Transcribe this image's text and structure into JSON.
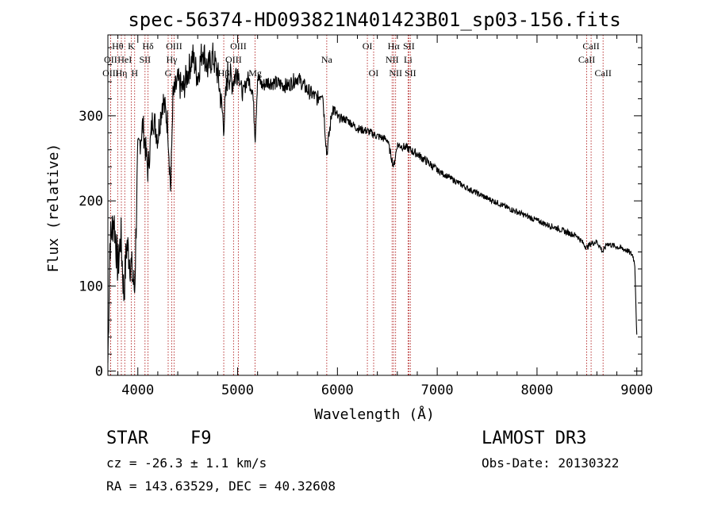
{
  "chart_data": {
    "type": "line",
    "title": "spec-56374-HD093821N401423B01_sp03-156.fits",
    "xlabel": "Wavelength (Å)",
    "ylabel": "Flux (relative)",
    "xlim": [
      3700,
      9050
    ],
    "ylim": [
      -5,
      395
    ],
    "x_ticks": [
      4000,
      5000,
      6000,
      7000,
      8000,
      9000
    ],
    "y_ticks": [
      0,
      100,
      200,
      300
    ],
    "series": [
      {
        "name": "spectrum",
        "anchors": [
          [
            3700,
            10
          ],
          [
            3720,
            150
          ],
          [
            3760,
            180
          ],
          [
            3800,
            120
          ],
          [
            3830,
            160
          ],
          [
            3860,
            90
          ],
          [
            3890,
            150
          ],
          [
            3930,
            125
          ],
          [
            3968,
            95
          ],
          [
            4000,
            255
          ],
          [
            4050,
            290
          ],
          [
            4101,
            235
          ],
          [
            4150,
            300
          ],
          [
            4200,
            275
          ],
          [
            4250,
            320
          ],
          [
            4300,
            290
          ],
          [
            4330,
            210
          ],
          [
            4350,
            320
          ],
          [
            4400,
            340
          ],
          [
            4450,
            330
          ],
          [
            4500,
            350
          ],
          [
            4550,
            370
          ],
          [
            4600,
            345
          ],
          [
            4650,
            380
          ],
          [
            4700,
            355
          ],
          [
            4750,
            370
          ],
          [
            4800,
            350
          ],
          [
            4861,
            290
          ],
          [
            4900,
            350
          ],
          [
            4950,
            340
          ],
          [
            5000,
            355
          ],
          [
            5050,
            325
          ],
          [
            5100,
            345
          ],
          [
            5150,
            330
          ],
          [
            5176,
            275
          ],
          [
            5200,
            345
          ],
          [
            5250,
            335
          ],
          [
            5300,
            340
          ],
          [
            5400,
            338
          ],
          [
            5500,
            335
          ],
          [
            5600,
            345
          ],
          [
            5700,
            330
          ],
          [
            5800,
            320
          ],
          [
            5850,
            330
          ],
          [
            5893,
            255
          ],
          [
            5950,
            310
          ],
          [
            6000,
            298
          ],
          [
            6100,
            295
          ],
          [
            6200,
            285
          ],
          [
            6300,
            282
          ],
          [
            6400,
            276
          ],
          [
            6500,
            272
          ],
          [
            6563,
            240
          ],
          [
            6600,
            266
          ],
          [
            6700,
            262
          ],
          [
            6800,
            255
          ],
          [
            6900,
            246
          ],
          [
            7000,
            236
          ],
          [
            7100,
            229
          ],
          [
            7200,
            222
          ],
          [
            7300,
            215
          ],
          [
            7400,
            209
          ],
          [
            7500,
            203
          ],
          [
            7600,
            198
          ],
          [
            7700,
            192
          ],
          [
            7800,
            187
          ],
          [
            7900,
            182
          ],
          [
            8000,
            177
          ],
          [
            8100,
            172
          ],
          [
            8200,
            168
          ],
          [
            8300,
            163
          ],
          [
            8400,
            159
          ],
          [
            8498,
            145
          ],
          [
            8542,
            150
          ],
          [
            8600,
            152
          ],
          [
            8662,
            140
          ],
          [
            8700,
            150
          ],
          [
            8800,
            146
          ],
          [
            8900,
            142
          ],
          [
            8960,
            136
          ],
          [
            8980,
            125
          ],
          [
            9000,
            40
          ]
        ]
      }
    ],
    "lines": [
      {
        "wavelength": 3727,
        "label": "OII",
        "row": 2
      },
      {
        "wavelength": 3727,
        "label": "OIII",
        "row": 3
      },
      {
        "wavelength": 3798,
        "label": "Hθ",
        "row": 1
      },
      {
        "wavelength": 3835,
        "label": "Hη",
        "row": 3
      },
      {
        "wavelength": 3869,
        "label": "HeI",
        "row": 2
      },
      {
        "wavelength": 3934,
        "label": "K",
        "row": 1
      },
      {
        "wavelength": 3968,
        "label": "H",
        "row": 3
      },
      {
        "wavelength": 4072,
        "label": "SII",
        "row": 2
      },
      {
        "wavelength": 4102,
        "label": "Hδ",
        "row": 1
      },
      {
        "wavelength": 4304,
        "label": "G",
        "row": 3
      },
      {
        "wavelength": 4340,
        "label": "Hγ",
        "row": 2
      },
      {
        "wavelength": 4363,
        "label": "OIII",
        "row": 1
      },
      {
        "wavelength": 4861,
        "label": "Hβ",
        "row": 3
      },
      {
        "wavelength": 4959,
        "label": "OIII",
        "row": 2
      },
      {
        "wavelength": 5007,
        "label": "OIII",
        "row": 1
      },
      {
        "wavelength": 5175,
        "label": "Mg",
        "row": 3
      },
      {
        "wavelength": 5893,
        "label": "Na",
        "row": 2
      },
      {
        "wavelength": 6300,
        "label": "OI",
        "row": 1
      },
      {
        "wavelength": 6363,
        "label": "OI",
        "row": 3
      },
      {
        "wavelength": 6548,
        "label": "NII",
        "row": 2
      },
      {
        "wavelength": 6563,
        "label": "Hα",
        "row": 1
      },
      {
        "wavelength": 6583,
        "label": "NII",
        "row": 3
      },
      {
        "wavelength": 6708,
        "label": "Li",
        "row": 2
      },
      {
        "wavelength": 6716,
        "label": "SII",
        "row": 1
      },
      {
        "wavelength": 6731,
        "label": "SII",
        "row": 3
      },
      {
        "wavelength": 8498,
        "label": "CaII",
        "row": 2
      },
      {
        "wavelength": 8542,
        "label": "CaII",
        "row": 1
      },
      {
        "wavelength": 8662,
        "label": "CaII",
        "row": 3
      }
    ]
  },
  "info": {
    "object_class": "STAR",
    "subclass": "F9",
    "survey": "LAMOST DR3",
    "redshift": "cz = -26.3 ± 1.1 km/s",
    "obs_date": "Obs-Date: 20130322",
    "coords": "RA = 143.63529, DEC =  40.32608"
  },
  "colors": {
    "axis": "#000000",
    "spectrum": "#000000",
    "line_marker": "#b22222"
  }
}
